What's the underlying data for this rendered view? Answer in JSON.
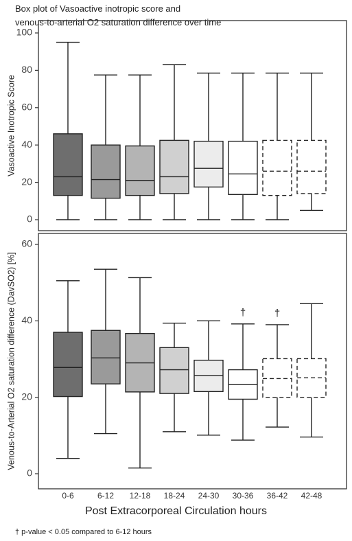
{
  "title_line1": "Box plot of Vasoactive inotropic score and",
  "title_line2": "venous-to-arterial O2 saturation difference over time",
  "xlabel": "Post Extracorporeal Circulation hours",
  "footnote": "† p-value < 0.05 compared to 6-12 hours",
  "chart_data": [
    {
      "type": "box",
      "ylabel": "Vasoactive Inotropic Score",
      "ylim": [
        0,
        100
      ],
      "yticks": [
        0,
        20,
        40,
        60,
        80,
        100
      ],
      "categories": [
        "0-6",
        "6-12",
        "12-18",
        "18-24",
        "24-30",
        "30-36",
        "36-42",
        "42-48"
      ],
      "boxes": [
        {
          "min": 0,
          "q1": 13,
          "median": 23,
          "q3": 46,
          "max": 95,
          "fill": "#6e6e6e",
          "dashed": false
        },
        {
          "min": 0,
          "q1": 11.5,
          "median": 21.5,
          "q3": 40,
          "max": 77.5,
          "fill": "#9a9a9a",
          "dashed": false
        },
        {
          "min": 0,
          "q1": 13,
          "median": 21,
          "q3": 39.5,
          "max": 77.5,
          "fill": "#b4b4b4",
          "dashed": false
        },
        {
          "min": 0,
          "q1": 14,
          "median": 23,
          "q3": 42.5,
          "max": 83,
          "fill": "#d0d0d0",
          "dashed": false
        },
        {
          "min": 0,
          "q1": 17.5,
          "median": 27.5,
          "q3": 42,
          "max": 78.5,
          "fill": "#ececec",
          "dashed": false
        },
        {
          "min": 0,
          "q1": 13.5,
          "median": 24.5,
          "q3": 42,
          "max": 78.5,
          "fill": "#ffffff",
          "dashed": false
        },
        {
          "min": 0,
          "q1": 13,
          "median": 26,
          "q3": 42.5,
          "max": 78.5,
          "fill": "#ffffff",
          "dashed": true
        },
        {
          "min": 5,
          "q1": 14,
          "median": 26,
          "q3": 42.5,
          "max": 78.5,
          "fill": "#ffffff",
          "dashed": true
        }
      ],
      "annotations": [
        "",
        "",
        "",
        "",
        "",
        "",
        "",
        ""
      ]
    },
    {
      "type": "box",
      "ylabel": "Venous-to-Arterial O2 saturation difference (DavSO2) [%]",
      "ylim": [
        0,
        60
      ],
      "yticks": [
        0,
        20,
        40,
        60
      ],
      "categories": [
        "0-6",
        "6-12",
        "12-18",
        "18-24",
        "24-30",
        "30-36",
        "36-42",
        "42-48"
      ],
      "boxes": [
        {
          "min": 4,
          "q1": 20.2,
          "median": 27.8,
          "q3": 37,
          "max": 50.5,
          "fill": "#6e6e6e",
          "dashed": false
        },
        {
          "min": 10.5,
          "q1": 23.5,
          "median": 30.3,
          "q3": 37.5,
          "max": 53.5,
          "fill": "#9a9a9a",
          "dashed": false
        },
        {
          "min": 1.5,
          "q1": 21.4,
          "median": 29,
          "q3": 36.7,
          "max": 51.3,
          "fill": "#b4b4b4",
          "dashed": false
        },
        {
          "min": 11,
          "q1": 21,
          "median": 27.2,
          "q3": 33,
          "max": 39.4,
          "fill": "#d0d0d0",
          "dashed": false
        },
        {
          "min": 10.1,
          "q1": 21.5,
          "median": 25.7,
          "q3": 29.7,
          "max": 40,
          "fill": "#ececec",
          "dashed": false
        },
        {
          "min": 8.8,
          "q1": 19.5,
          "median": 23.3,
          "q3": 27.2,
          "max": 39.2,
          "fill": "#ffffff",
          "dashed": false
        },
        {
          "min": 12.2,
          "q1": 20,
          "median": 24.9,
          "q3": 30.1,
          "max": 39,
          "fill": "#ffffff",
          "dashed": true
        },
        {
          "min": 9.6,
          "q1": 20,
          "median": 25.1,
          "q3": 30.1,
          "max": 44.5,
          "fill": "#ffffff",
          "dashed": true
        }
      ],
      "annotations": [
        "",
        "",
        "",
        "",
        "",
        "†",
        "†",
        ""
      ]
    }
  ]
}
